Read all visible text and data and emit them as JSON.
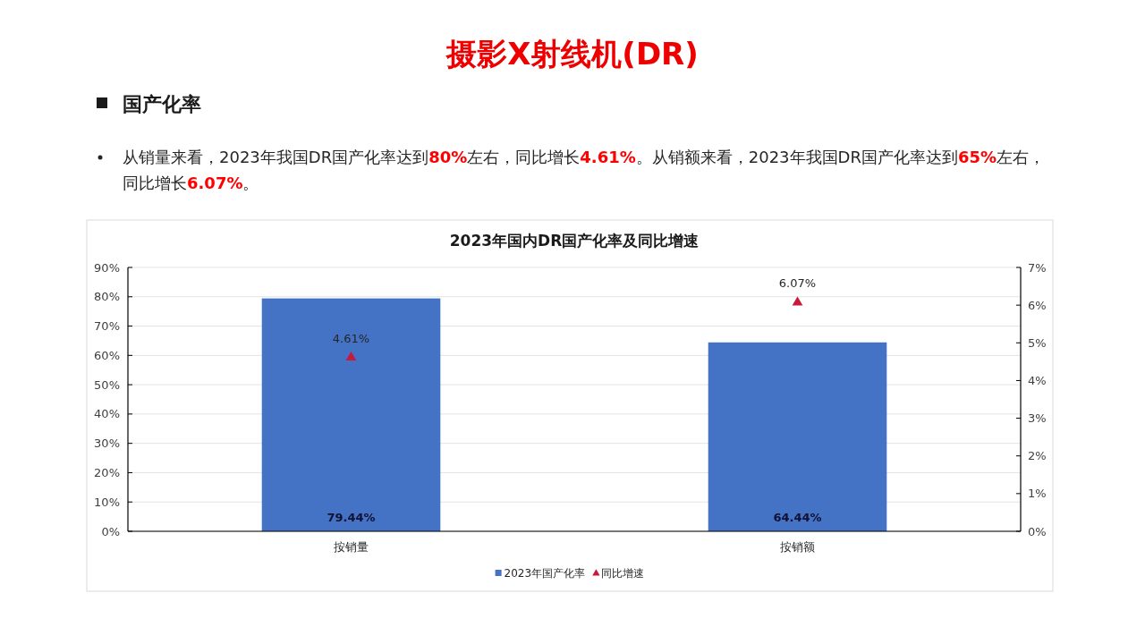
{
  "chart_data": {
    "type": "bar",
    "title": "2023年国内DR国产化率及同比增速",
    "annotations": [
      "摄影X射线机(DR)",
      "国产化率",
      "从销量来看，2023年我国DR国产化率达到80%左右，同比增长4.61%。从销额来看，2023年我国DR国产化率达到65%左右，同比增长6.07%。"
    ],
    "categories": [
      "按销量",
      "按销额"
    ],
    "series": [
      {
        "name": "2023年国产化率",
        "color": "#4472c4",
        "values": [
          79.44,
          64.44
        ],
        "value_labels": [
          "79.44%",
          "64.44%"
        ]
      },
      {
        "name": "同比增速",
        "type": "scatter",
        "axis": "y2",
        "marker": "triangle",
        "color": "#c8193c",
        "values": [
          4.61,
          6.07
        ],
        "value_labels": [
          "4.61%",
          "6.07%"
        ]
      }
    ],
    "ylim": [
      0,
      90
    ],
    "yticks": [
      {
        "value": 0,
        "label": "0%"
      },
      {
        "value": 10,
        "label": "10%"
      },
      {
        "value": 20,
        "label": "20%"
      },
      {
        "value": 30,
        "label": "30%"
      },
      {
        "value": 40,
        "label": "40%"
      },
      {
        "value": 50,
        "label": "50%"
      },
      {
        "value": 60,
        "label": "60%"
      },
      {
        "value": 70,
        "label": "70%"
      },
      {
        "value": 80,
        "label": "80%"
      },
      {
        "value": 90,
        "label": "90%"
      }
    ],
    "y2lim": [
      0,
      7
    ],
    "y2ticks": [
      {
        "value": 0,
        "label": "0%"
      },
      {
        "value": 1,
        "label": "1%"
      },
      {
        "value": 2,
        "label": "2%"
      },
      {
        "value": 3,
        "label": "3%"
      },
      {
        "value": 4,
        "label": "4%"
      },
      {
        "value": 5,
        "label": "5%"
      },
      {
        "value": 6,
        "label": "6%"
      },
      {
        "value": 7,
        "label": "7%"
      }
    ],
    "grid": "y",
    "legend": "bottom"
  }
}
